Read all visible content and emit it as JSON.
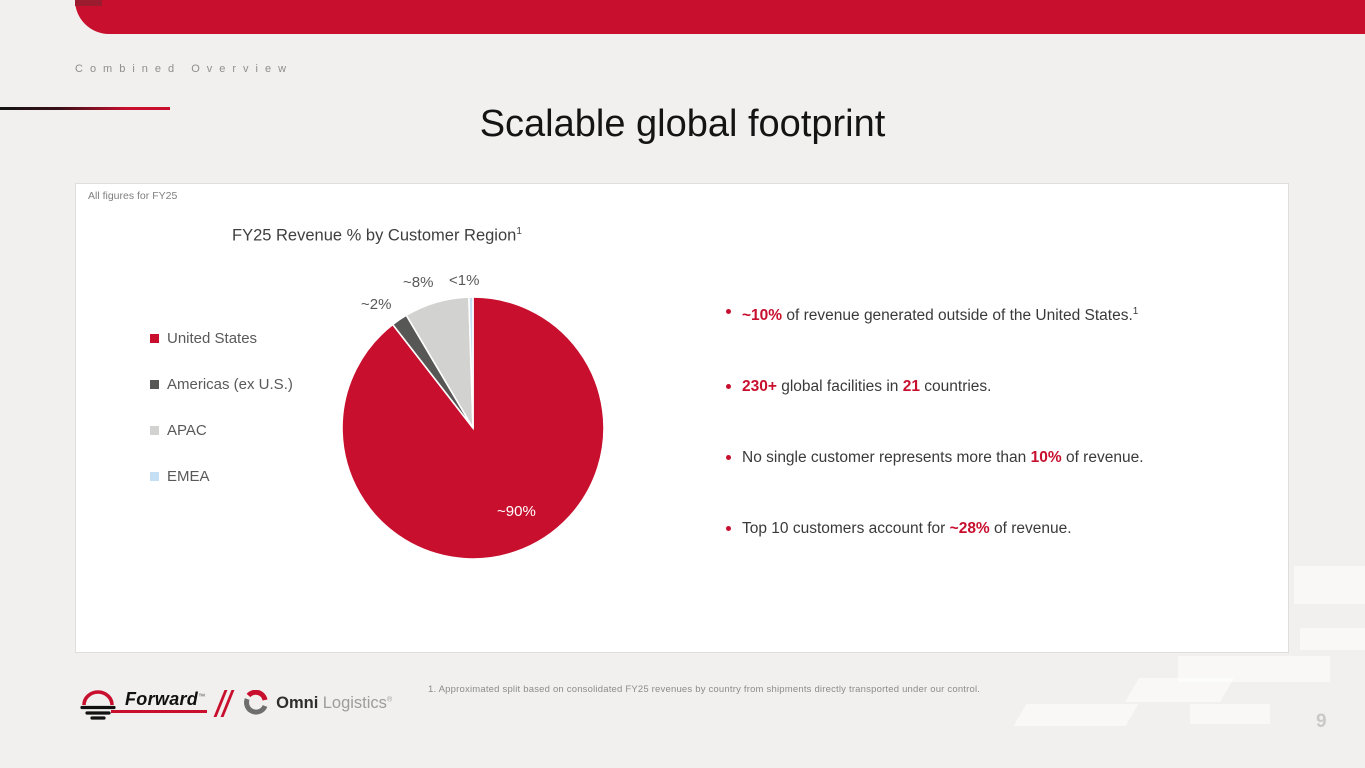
{
  "slide": {
    "eyebrow": "Combined Overview",
    "title": "Scalable global footprint",
    "card_note": "All figures for FY25",
    "footnote": "1.  Approximated split based on consolidated FY25 revenues by country from shipments directly transported under our control.",
    "page_number": "9"
  },
  "chart_data": {
    "type": "pie",
    "title": "FY25 Revenue % by Customer Region",
    "title_superscript": "1",
    "start_angle": "12 o'clock, clockwise",
    "legend_position": "left",
    "slices": [
      {
        "label": "United States",
        "value_pct": 89.5,
        "display": "~90%",
        "color": "#C8102E"
      },
      {
        "label": "Americas (ex U.S.)",
        "value_pct": 2.0,
        "display": "~2%",
        "color": "#575756"
      },
      {
        "label": "APAC",
        "value_pct": 8.0,
        "display": "~8%",
        "color": "#D2D2D1"
      },
      {
        "label": "EMEA",
        "value_pct": 0.5,
        "display": "<1%",
        "color": "#C5E0F4"
      }
    ]
  },
  "bullets": [
    {
      "segments": [
        {
          "t": "~10%",
          "strong": true
        },
        {
          "t": " of revenue generated outside of the United States.",
          "strong": false
        },
        {
          "t": "1",
          "sup": true
        }
      ]
    },
    {
      "segments": [
        {
          "t": "230+",
          "strong": true
        },
        {
          "t": " global facilities in ",
          "strong": false
        },
        {
          "t": "21",
          "strong": true
        },
        {
          "t": " countries.",
          "strong": false
        }
      ]
    },
    {
      "segments": [
        {
          "t": "No single customer represents more than ",
          "strong": false
        },
        {
          "t": "10%",
          "strong": true
        },
        {
          "t": " of revenue.",
          "strong": false
        }
      ]
    },
    {
      "segments": [
        {
          "t": "Top 10 customers account for ",
          "strong": false
        },
        {
          "t": "~28%",
          "strong": true
        },
        {
          "t": " of revenue.",
          "strong": false
        }
      ]
    }
  ],
  "footer": {
    "forward_name": "Forward",
    "forward_tm": "™",
    "omni_bold": "Omni",
    "omni_light": "Logistics",
    "omni_reg": "®"
  },
  "colors": {
    "accent_red": "#C8102E",
    "dark_red_notch": "#9B1B2F",
    "background": "#f1f0ee",
    "card_background": "#ffffff",
    "bullet_text": "#3a3a3a",
    "legend_text": "#595959",
    "muted_gray": "#8c8c8c"
  }
}
